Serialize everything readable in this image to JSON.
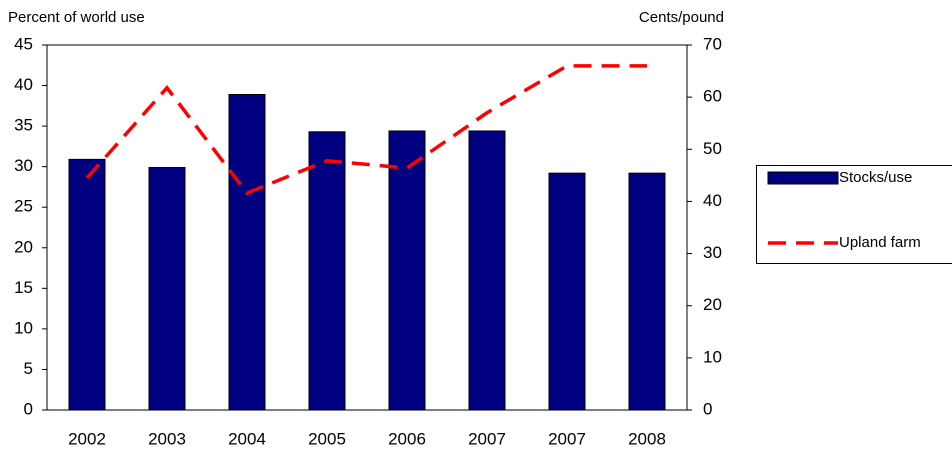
{
  "chart_data": {
    "type": "bar_line",
    "y_label": "Percent of world use",
    "y2_label": "Cents/pound",
    "categories": [
      "2002",
      "2003",
      "2004",
      "2005",
      "2006",
      "2007",
      "2007",
      "2008"
    ],
    "series": [
      {
        "name": "Stocks/use",
        "type": "bar",
        "axis": "y",
        "color": "#000080",
        "values": [
          30.9,
          29.9,
          38.9,
          34.3,
          34.4,
          34.4,
          29.2,
          29.2
        ]
      },
      {
        "name": "Upland farm",
        "type": "line",
        "axis": "y2",
        "color": "#ff0000",
        "values": [
          44.5,
          61.8,
          41.6,
          47.8,
          46.4,
          57,
          66,
          66
        ]
      }
    ],
    "ylim": [
      0,
      45
    ],
    "yticks": [
      0,
      5,
      10,
      15,
      20,
      25,
      30,
      35,
      40,
      45
    ],
    "y2lim": [
      0,
      70
    ],
    "y2ticks": [
      0,
      10,
      20,
      30,
      40,
      50,
      60,
      70
    ],
    "legend": "right"
  }
}
